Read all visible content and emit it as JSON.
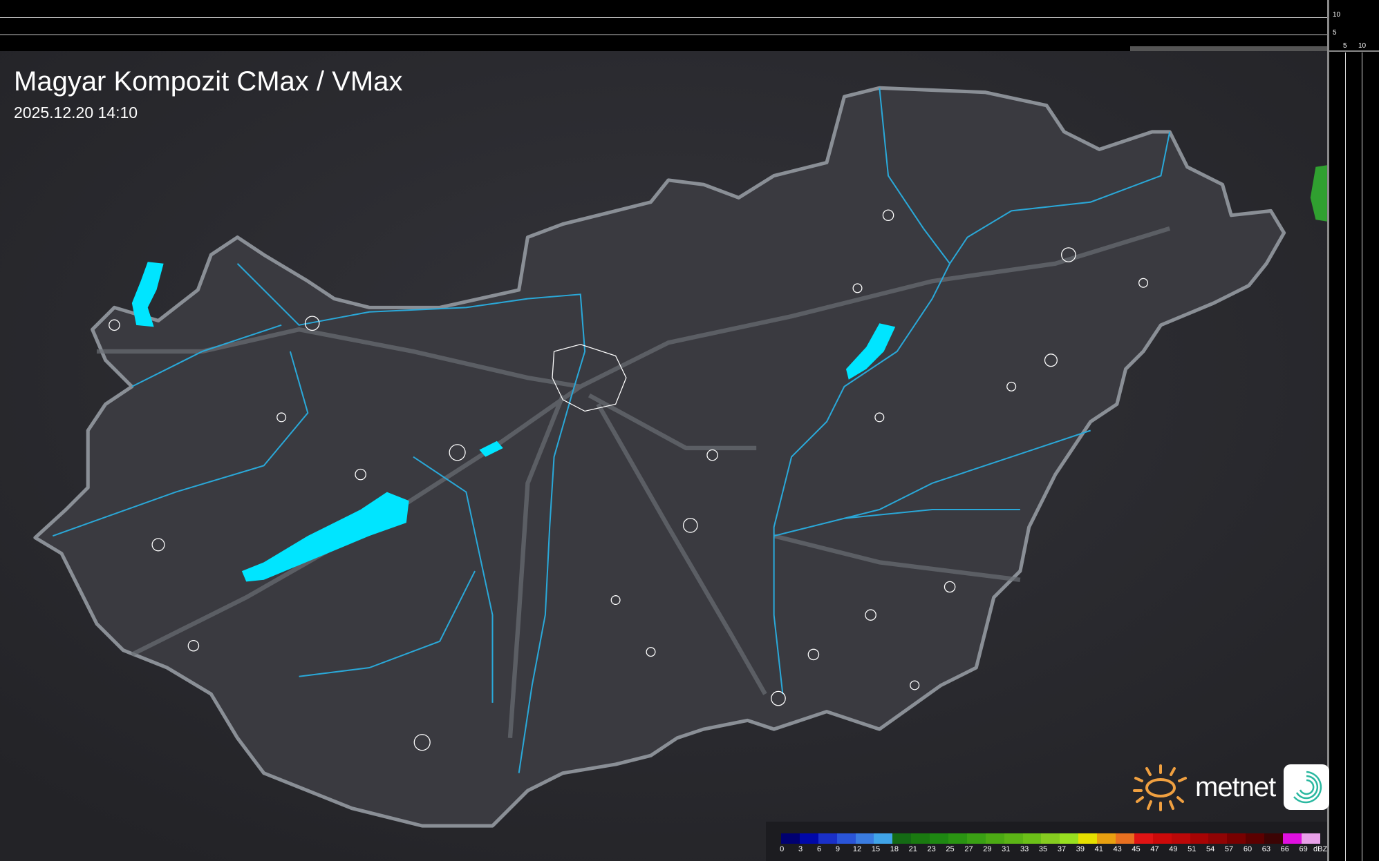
{
  "header": {
    "title": "Magyar Kompozit CMax / VMax",
    "datetime": "2025.12.20 14:10"
  },
  "profile_axes": {
    "vertical_ticks": [
      "10",
      "5"
    ],
    "horizontal_ticks": [
      "5",
      "10"
    ]
  },
  "legend": {
    "unit": "dBZ",
    "labels": [
      "0",
      "3",
      "6",
      "9",
      "12",
      "15",
      "18",
      "21",
      "23",
      "25",
      "27",
      "29",
      "31",
      "33",
      "35",
      "37",
      "39",
      "41",
      "43",
      "45",
      "47",
      "49",
      "51",
      "54",
      "57",
      "60",
      "63",
      "66",
      "69"
    ],
    "colors": [
      "#000070",
      "#0008a8",
      "#1a30c8",
      "#2a55d8",
      "#3a7ce0",
      "#40a4e8",
      "#146a14",
      "#1a7a10",
      "#1e8812",
      "#2a9412",
      "#3aa014",
      "#4caa14",
      "#5cb416",
      "#6cc018",
      "#86cc20",
      "#98e020",
      "#e6e000",
      "#e8a010",
      "#e87020",
      "#e01414",
      "#cc0a0a",
      "#bc0808",
      "#a80404",
      "#900404",
      "#780000",
      "#5c0000",
      "#3c0404",
      "#e010e0",
      "#e8a0e8",
      "#80e0e8"
    ]
  },
  "branding": {
    "logo_text": "metnet",
    "logo_sun_color": "#f0a040",
    "app_icon_color": "#2ab8a0"
  },
  "map": {
    "water_color": "#00e5ff",
    "river_color": "#2aa8d8",
    "border_color": "#8a8f96",
    "radar_echo_color": "#30a030"
  }
}
